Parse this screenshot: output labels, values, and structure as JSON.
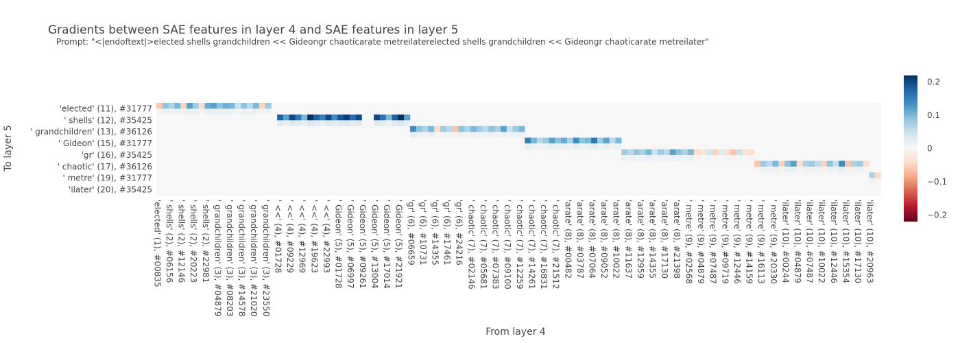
{
  "chart_data": {
    "type": "heatmap",
    "title": "Gradients between SAE features in layer 4 and SAE features in layer 5",
    "subtitle": "Prompt: \"<|endoftext|>elected shells grandchildren << Gideongr chaoticarate metreilaterelected shells grandchildren << Gideongr chaoticarate metreilater\"",
    "xlabel": "From layer 4",
    "ylabel": "To layer 5",
    "y_tick_labels": [
      "'elected' (11), #31777",
      "' shells' (12), #35425",
      "' grandchildren' (13), #36126",
      "' Gideon' (15), #31777",
      "'gr' (16), #35425",
      "' chaotic' (17), #36126",
      "' metre' (19), #31777",
      "'ilater' (20), #35425"
    ],
    "x_tick_labels": [
      "'elected' (1), #00835",
      "' shells' (2), #06156",
      "' shells' (2), #12146",
      "' shells' (2), #20223",
      "' shells' (2), #22981",
      "' grandchildren' (3), #04879",
      "' grandchildren' (3), #08203",
      "' grandchildren' (3), #14578",
      "' grandchildren' (3), #21020",
      "' grandchildren' (3), #23550",
      "' <<' (4), #01728",
      "' <<' (4), #09229",
      "' <<' (4), #12969",
      "' <<' (4), #19623",
      "' <<' (4), #22993",
      "' Gideon' (5), #01728",
      "' Gideon' (5), #06997",
      "' Gideon' (5), #09261",
      "' Gideon' (5), #13004",
      "' Gideon' (5), #17014",
      "' Gideon' (5), #21921",
      "'gr' (6), #06659",
      "'gr' (6), #10731",
      "'gr' (6), #14355",
      "'gr' (6), #17461",
      "'gr' (6), #24216",
      "' chaotic' (7), #02146",
      "' chaotic' (7), #05681",
      "' chaotic' (7), #07383",
      "' chaotic' (7), #09100",
      "' chaotic' (7), #12259",
      "' chaotic' (7), #14261",
      "' chaotic' (7), #16831",
      "' chaotic' (7), #21512",
      "'arate' (8), #00482",
      "'arate' (8), #03787",
      "'arate' (8), #07064",
      "'arate' (8), #09052",
      "'arate' (8), #10022",
      "'arate' (8), #11637",
      "'arate' (8), #12959",
      "'arate' (8), #14355",
      "'arate' (8), #17130",
      "'arate' (8), #21398",
      "' metre' (9), #02568",
      "' metre' (9), #04879",
      "' metre' (9), #07487",
      "' metre' (9), #09719",
      "' metre' (9), #12446",
      "' metre' (9), #14159",
      "' metre' (9), #16113",
      "' metre' (9), #20330",
      "'ilater' (10), #00244",
      "'ilater' (10), #04879",
      "'ilater' (10), #07487",
      "'ilater' (10), #10022",
      "'ilater' (10), #12446",
      "'ilater' (10), #15354",
      "'ilater' (10), #17130",
      "'ilater' (10), #20963"
    ],
    "n_rows": 16,
    "n_cols": 120,
    "y_tick_row_index": [
      1,
      3,
      5,
      7,
      9,
      11,
      13,
      15
    ],
    "row_blocks": [
      {
        "rows": [
          0,
          1
        ],
        "col_range": [
          0,
          8
        ],
        "values": [
          -0.06,
          0.09,
          0.07,
          0.1,
          -0.05,
          0.12,
          0.08,
          -0.04,
          0.11
        ]
      },
      {
        "rows": [
          0,
          1
        ],
        "col_range": [
          9,
          15
        ],
        "values": [
          0.12,
          0.09,
          0.11,
          0.1,
          0.05,
          0.09,
          0.06
        ]
      },
      {
        "rows": [
          0,
          1
        ],
        "col_range": [
          16,
          18
        ],
        "values": [
          0.1,
          -0.05,
          0.08
        ]
      },
      {
        "rows": [
          2,
          3
        ],
        "col_range": [
          20,
          33
        ],
        "values": [
          0.18,
          0.12,
          0.2,
          0.16,
          0.1,
          0.22,
          0.18,
          0.15,
          0.2,
          0.14,
          0.19,
          0.21,
          0.17,
          0.2
        ]
      },
      {
        "rows": [
          2,
          3
        ],
        "col_range": [
          36,
          41
        ],
        "values": [
          0.2,
          0.16,
          0.1,
          0.18,
          0.22,
          0.12
        ]
      },
      {
        "rows": [
          4,
          5
        ],
        "col_range": [
          42,
          51
        ],
        "values": [
          0.14,
          0.09,
          0.07,
          0.1,
          -0.04,
          0.08,
          0.06,
          -0.06,
          0.09,
          0.07
        ]
      },
      {
        "rows": [
          4,
          5
        ],
        "col_range": [
          52,
          60
        ],
        "values": [
          0.1,
          0.08,
          0.06,
          0.09,
          0.07,
          0.12,
          0.05,
          0.08,
          0.1
        ]
      },
      {
        "rows": [
          6,
          7
        ],
        "col_range": [
          61,
          66
        ],
        "values": [
          0.15,
          0.1,
          0.06,
          0.08,
          0.12,
          0.09
        ]
      },
      {
        "rows": [
          6,
          7
        ],
        "col_range": [
          67,
          76
        ],
        "values": [
          0.11,
          0.07,
          0.14,
          0.09,
          0.1,
          0.16,
          0.08,
          0.12,
          0.06,
          0.1
        ]
      },
      {
        "rows": [
          8,
          9
        ],
        "col_range": [
          77,
          88
        ],
        "values": [
          0.08,
          0.06,
          0.09,
          0.07,
          0.1,
          0.05,
          0.08,
          0.06,
          0.12,
          0.09,
          0.07,
          0.1
        ]
      },
      {
        "rows": [
          8,
          9
        ],
        "col_range": [
          89,
          98
        ],
        "values": [
          -0.04,
          -0.03,
          0.04,
          -0.05,
          0.03,
          -0.04,
          -0.06,
          0.05,
          -0.03,
          -0.04
        ]
      },
      {
        "rows": [
          10,
          11
        ],
        "col_range": [
          99,
          108
        ],
        "values": [
          -0.06,
          0.08,
          0.06,
          0.1,
          -0.05,
          0.09,
          0.12,
          -0.04,
          0.07,
          0.08
        ]
      },
      {
        "rows": [
          10,
          11
        ],
        "col_range": [
          109,
          117
        ],
        "values": [
          0.06,
          -0.05,
          0.09,
          0.05,
          0.14,
          -0.06,
          0.07,
          0.08,
          -0.04
        ]
      },
      {
        "rows": [
          12,
          13
        ],
        "col_range": [
          118,
          119
        ],
        "values": [
          0.07,
          -0.04
        ]
      }
    ],
    "colorscale": [
      "#67001f",
      "#b2182b",
      "#d6604d",
      "#f4a582",
      "#fddbc7",
      "#f7f7f7",
      "#d1e5f0",
      "#92c5de",
      "#4393c3",
      "#2166ac",
      "#053061"
    ],
    "zlim": [
      -0.22,
      0.22
    ],
    "colorbar_ticks": [
      "0.2",
      "0.1",
      "0",
      "−0.1",
      "−0.2"
    ],
    "colorbar_tick_values": [
      0.2,
      0.1,
      0,
      -0.1,
      -0.2
    ]
  }
}
